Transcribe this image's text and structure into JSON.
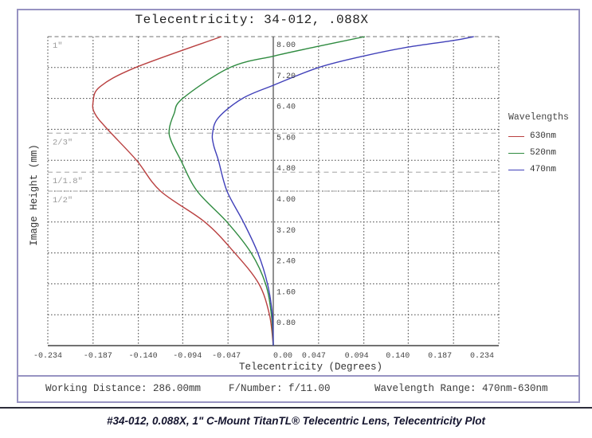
{
  "title": "Telecentricity: 34-012, .088X",
  "chart_data": {
    "type": "line",
    "title": "Telecentricity: 34-012, .088X",
    "xlabel": "Telecentricity (Degrees)",
    "ylabel": "Image Height (mm)",
    "xlim": [
      -0.234,
      0.234
    ],
    "ylim": [
      0,
      8.0
    ],
    "grid": "dotted",
    "x_ticks": [
      -0.234,
      -0.187,
      -0.14,
      -0.094,
      -0.047,
      0.0,
      0.047,
      0.094,
      0.14,
      0.187,
      0.234
    ],
    "x_tick_labels": [
      "-0.234",
      "-0.187",
      "-0.140",
      "-0.094",
      "-0.047",
      "0.00",
      "0.047",
      "0.094",
      "0.140",
      "0.187",
      "0.234"
    ],
    "y_ticks": [
      0.8,
      1.6,
      2.4,
      3.2,
      4.0,
      4.8,
      5.6,
      6.4,
      7.2,
      8.0
    ],
    "y_tick_labels": [
      "0.80",
      "1.60",
      "2.40",
      "3.20",
      "4.00",
      "4.80",
      "5.60",
      "6.40",
      "7.20",
      "8.00"
    ],
    "sensor_format_lines": [
      {
        "label": "1\"",
        "mm": 8.0
      },
      {
        "label": "2/3\"",
        "mm": 5.5
      },
      {
        "label": "1/1.8\"",
        "mm": 4.49
      },
      {
        "label": "1/2\"",
        "mm": 4.0
      }
    ],
    "legend_title": "Wavelengths",
    "legend_position": "right",
    "series": [
      {
        "name": "630nm",
        "color": "#b94040",
        "points": [
          [
            0.0,
            0.0
          ],
          [
            -0.004,
            0.8
          ],
          [
            -0.015,
            1.6
          ],
          [
            -0.04,
            2.4
          ],
          [
            -0.071,
            3.2
          ],
          [
            -0.117,
            4.0
          ],
          [
            -0.142,
            4.8
          ],
          [
            -0.172,
            5.6
          ],
          [
            -0.185,
            6.0
          ],
          [
            -0.187,
            6.3
          ],
          [
            -0.18,
            6.7
          ],
          [
            -0.143,
            7.2
          ],
          [
            -0.054,
            8.0
          ]
        ]
      },
      {
        "name": "520nm",
        "color": "#2f8b40",
        "points": [
          [
            0.0,
            0.0
          ],
          [
            -0.002,
            0.8
          ],
          [
            -0.008,
            1.6
          ],
          [
            -0.023,
            2.4
          ],
          [
            -0.048,
            3.2
          ],
          [
            -0.079,
            4.0
          ],
          [
            -0.096,
            4.8
          ],
          [
            -0.106,
            5.3
          ],
          [
            -0.108,
            5.6
          ],
          [
            -0.103,
            6.0
          ],
          [
            -0.094,
            6.4
          ],
          [
            -0.045,
            7.2
          ],
          [
            0.001,
            7.5
          ],
          [
            0.047,
            7.75
          ],
          [
            0.095,
            8.0
          ]
        ]
      },
      {
        "name": "470nm",
        "color": "#4040b9",
        "points": [
          [
            0.0,
            0.0
          ],
          [
            -0.001,
            0.8
          ],
          [
            -0.006,
            1.6
          ],
          [
            -0.016,
            2.4
          ],
          [
            -0.031,
            3.2
          ],
          [
            -0.048,
            4.0
          ],
          [
            -0.057,
            4.8
          ],
          [
            -0.062,
            5.2
          ],
          [
            -0.063,
            5.5
          ],
          [
            -0.057,
            5.9
          ],
          [
            -0.032,
            6.4
          ],
          [
            0.001,
            6.75
          ],
          [
            0.047,
            7.2
          ],
          [
            0.094,
            7.5
          ],
          [
            0.14,
            7.73
          ],
          [
            0.187,
            7.9
          ],
          [
            0.208,
            8.0
          ]
        ]
      }
    ]
  },
  "footer": {
    "working_distance": "Working Distance: 286.00mm",
    "f_number": "F/Number: f/11.00",
    "wavelength_range": "Wavelength Range: 470nm-630nm"
  },
  "caption": "#34-012, 0.088X, 1\" C-Mount TitanTL® Telecentric Lens, Telecentricity Plot",
  "colors": {
    "frame_border": "#9793c2",
    "grid": "#4a4a4a",
    "axis": "#555555",
    "sensor_line": "#b5b5b5",
    "sensor_label": "#9a9a9a",
    "tick_label": "#444444",
    "caption_rule": "#2c2c3a"
  }
}
